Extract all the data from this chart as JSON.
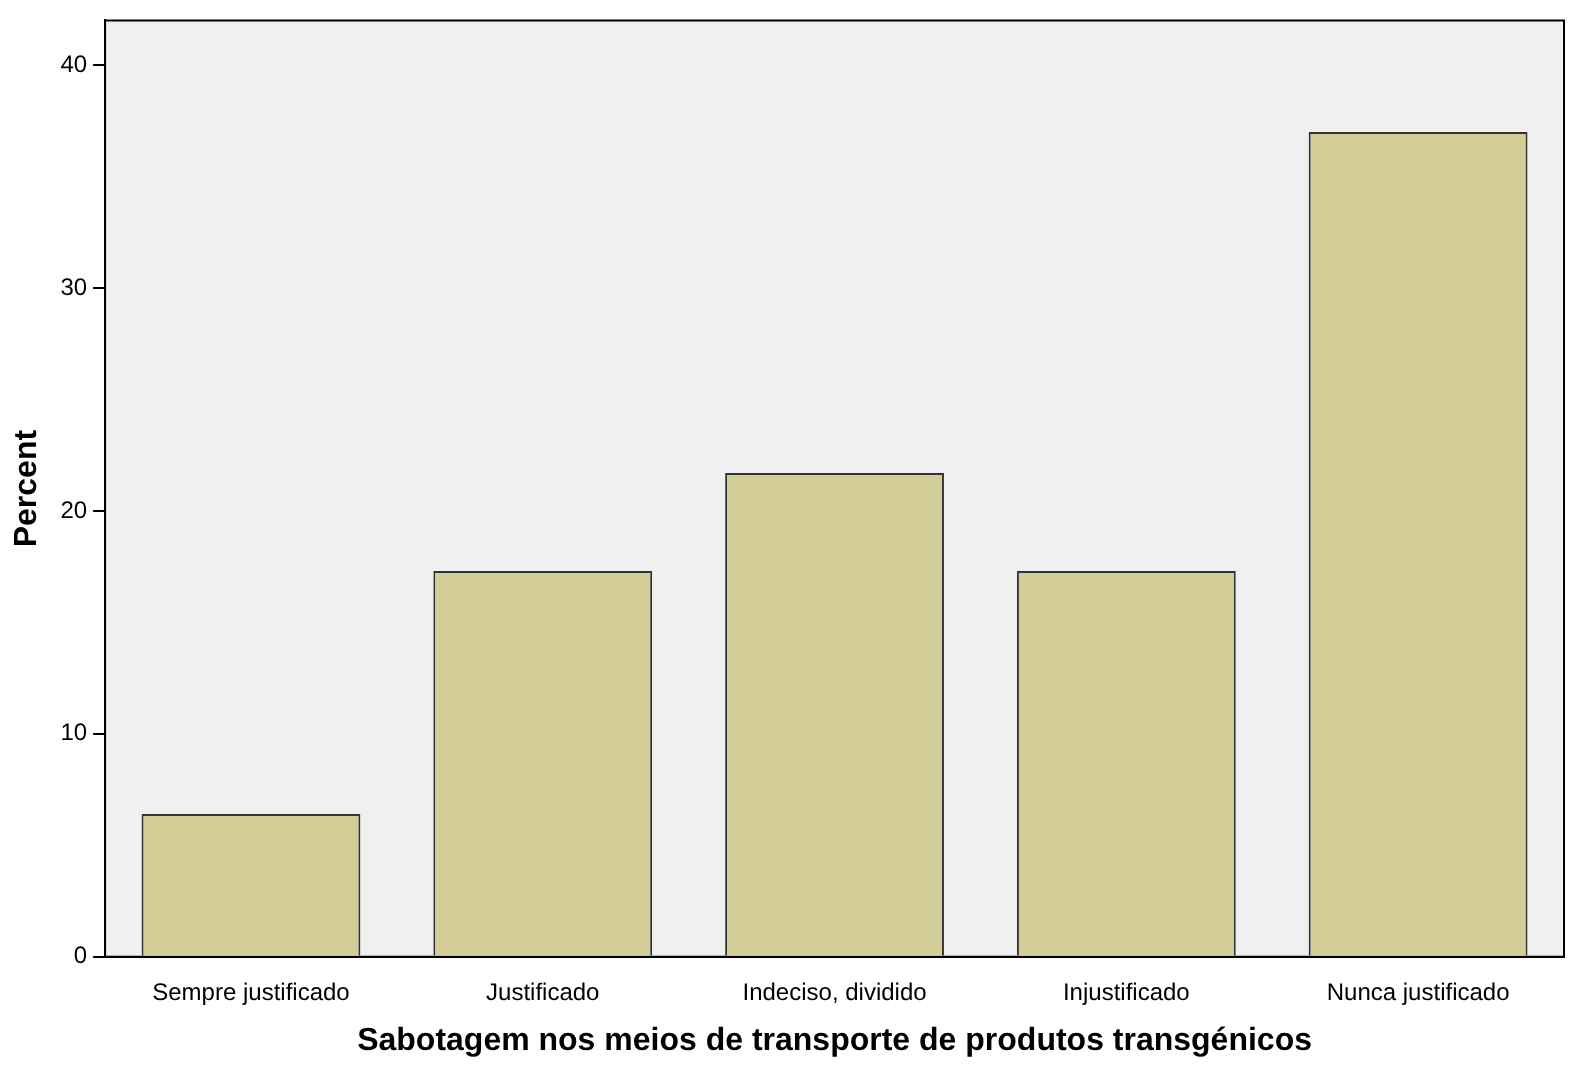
{
  "chart_data": {
    "type": "bar",
    "xlabel": "Sabotagem nos meios de transporte de produtos transgénicos",
    "ylabel": "Percent",
    "categories": [
      "Sempre justificado",
      "Justificado",
      "Indeciso, dividido",
      "Injustificado",
      "Nunca justificado"
    ],
    "values": [
      6.4,
      17.3,
      21.7,
      17.3,
      37.0
    ],
    "color": "#d3ce98",
    "ylim": [
      0,
      42
    ],
    "yticks": [
      0,
      10,
      20,
      30,
      40
    ],
    "grid": false,
    "legend": false
  }
}
